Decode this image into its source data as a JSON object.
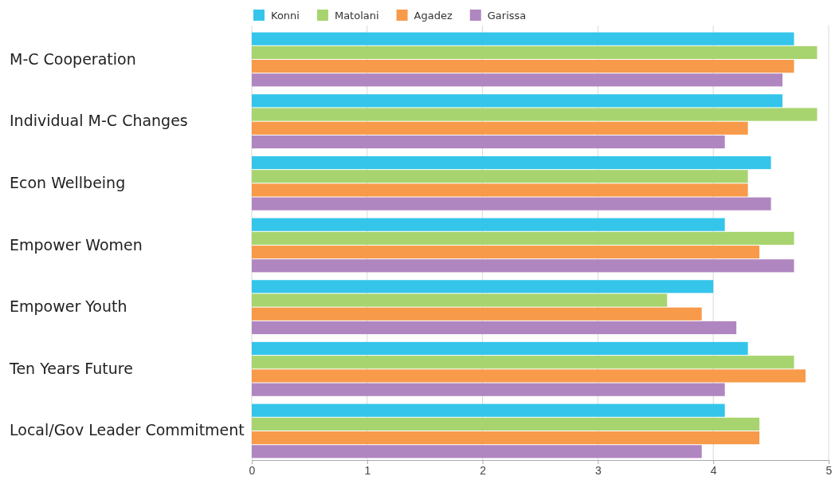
{
  "chart_data": {
    "type": "bar",
    "orientation": "horizontal",
    "categories": [
      "M-C Cooperation",
      "Individual M-C Changes",
      "Econ Wellbeing",
      "Empower Women",
      "Empower Youth",
      "Ten Years Future",
      "Local/Gov Leader Commitment"
    ],
    "series": [
      {
        "name": "Konni",
        "color": "#35c5ea",
        "values": [
          4.7,
          4.6,
          4.5,
          4.1,
          4.0,
          4.3,
          4.1
        ]
      },
      {
        "name": "Matolani",
        "color": "#a8d46f",
        "values": [
          4.9,
          4.9,
          4.3,
          4.7,
          3.6,
          4.7,
          4.4
        ]
      },
      {
        "name": "Agadez",
        "color": "#f79a4a",
        "values": [
          4.7,
          4.3,
          4.3,
          4.4,
          3.9,
          4.8,
          4.4
        ]
      },
      {
        "name": "Garissa",
        "color": "#b086c0",
        "values": [
          4.6,
          4.1,
          4.5,
          4.7,
          4.2,
          4.1,
          3.9
        ]
      }
    ],
    "xlim": [
      0,
      5
    ],
    "xticks": [
      0,
      1,
      2,
      3,
      4,
      5
    ],
    "grid": "x",
    "legend": "top"
  }
}
